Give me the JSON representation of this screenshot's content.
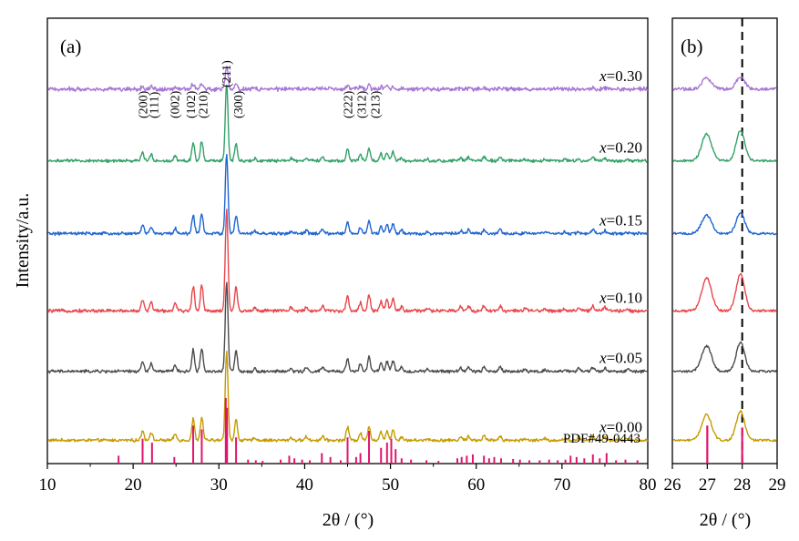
{
  "chart_data": [
    {
      "panel": "(a)",
      "type": "line",
      "xlabel": "2θ / (°)",
      "ylabel": "Intensity/a.u.",
      "xlim": [
        10,
        80
      ],
      "xticks": [
        "10",
        "20",
        "30",
        "40",
        "50",
        "60",
        "70",
        "80"
      ],
      "yaxis_ticks": "none",
      "series": [
        {
          "name": "x=0.00",
          "var": "x",
          "value": "=0.00",
          "color": "#c59b00",
          "baseline": 0.42,
          "scale": 1.0,
          "noise": 0.022
        },
        {
          "name": "x=0.05",
          "var": "x",
          "value": "=0.05",
          "color": "#4d4d4d",
          "baseline": 1.66,
          "scale": 1.0,
          "noise": 0.022
        },
        {
          "name": "x=0.10",
          "var": "x",
          "value": "=0.10",
          "color": "#e8474c",
          "baseline": 2.75,
          "scale": 1.13,
          "noise": 0.024
        },
        {
          "name": "x=0.15",
          "var": "x",
          "value": "=0.15",
          "color": "#1f66d1",
          "baseline": 4.14,
          "scale": 0.88,
          "noise": 0.022
        },
        {
          "name": "x=0.20",
          "var": "x",
          "value": "=0.20",
          "color": "#34a167",
          "baseline": 5.45,
          "scale": 0.87,
          "noise": 0.022
        },
        {
          "name": "x=0.30",
          "var": "x",
          "value": "=0.30",
          "color": "#a876d6",
          "baseline": 6.74,
          "scale": 0.26,
          "noise": 0.03
        }
      ],
      "peaks": [
        {
          "pos": 21.1,
          "h": 0.11
        },
        {
          "pos": 22.1,
          "h": 0.09
        },
        {
          "pos": 24.9,
          "h": 0.07
        },
        {
          "pos": 27.0,
          "h": 0.24
        },
        {
          "pos": 28.0,
          "h": 0.26
        },
        {
          "pos": 30.9,
          "h": 1.0
        },
        {
          "pos": 32.0,
          "h": 0.23
        },
        {
          "pos": 34.2,
          "h": 0.03
        },
        {
          "pos": 38.4,
          "h": 0.03
        },
        {
          "pos": 40.2,
          "h": 0.04
        },
        {
          "pos": 42.1,
          "h": 0.05
        },
        {
          "pos": 45.0,
          "h": 0.15
        },
        {
          "pos": 46.5,
          "h": 0.08
        },
        {
          "pos": 47.5,
          "h": 0.16
        },
        {
          "pos": 48.9,
          "h": 0.09
        },
        {
          "pos": 49.6,
          "h": 0.11
        },
        {
          "pos": 50.3,
          "h": 0.12
        },
        {
          "pos": 51.3,
          "h": 0.04
        },
        {
          "pos": 54.3,
          "h": 0.02
        },
        {
          "pos": 58.2,
          "h": 0.04
        },
        {
          "pos": 59.1,
          "h": 0.05
        },
        {
          "pos": 60.9,
          "h": 0.05
        },
        {
          "pos": 62.8,
          "h": 0.05
        },
        {
          "pos": 65.7,
          "h": 0.02
        },
        {
          "pos": 68.0,
          "h": 0.02
        },
        {
          "pos": 70.3,
          "h": 0.02
        },
        {
          "pos": 71.9,
          "h": 0.03
        },
        {
          "pos": 73.6,
          "h": 0.05
        },
        {
          "pos": 75.0,
          "h": 0.04
        },
        {
          "pos": 77.6,
          "h": 0.02
        }
      ],
      "hkl_labels": [
        {
          "text": "(200)",
          "pos": 21.1
        },
        {
          "text": "(111)",
          "pos": 22.4
        },
        {
          "text": "(002)",
          "pos": 24.8
        },
        {
          "text": "(102)",
          "pos": 26.7
        },
        {
          "text": "(210)",
          "pos": 28.1
        },
        {
          "text": "(211)",
          "pos": 30.8
        },
        {
          "text": "(300)",
          "pos": 32.2
        },
        {
          "text": "(222)",
          "pos": 45.0
        },
        {
          "text": "(312)",
          "pos": 46.6
        },
        {
          "text": "(213)",
          "pos": 48.2
        }
      ],
      "reference": {
        "label": "PDF#49-0443",
        "color": "#e0156e",
        "lines": [
          {
            "pos": 18.3,
            "h": 0.12
          },
          {
            "pos": 21.1,
            "h": 0.38
          },
          {
            "pos": 22.2,
            "h": 0.32
          },
          {
            "pos": 24.8,
            "h": 0.1
          },
          {
            "pos": 27.0,
            "h": 0.58
          },
          {
            "pos": 28.0,
            "h": 0.52
          },
          {
            "pos": 30.8,
            "h": 1.0
          },
          {
            "pos": 30.95,
            "h": 0.85
          },
          {
            "pos": 32.0,
            "h": 0.4
          },
          {
            "pos": 33.4,
            "h": 0.06
          },
          {
            "pos": 34.3,
            "h": 0.05
          },
          {
            "pos": 35.1,
            "h": 0.04
          },
          {
            "pos": 37.2,
            "h": 0.06
          },
          {
            "pos": 38.2,
            "h": 0.12
          },
          {
            "pos": 38.8,
            "h": 0.08
          },
          {
            "pos": 39.7,
            "h": 0.06
          },
          {
            "pos": 40.6,
            "h": 0.05
          },
          {
            "pos": 42.0,
            "h": 0.16
          },
          {
            "pos": 43.0,
            "h": 0.1
          },
          {
            "pos": 44.2,
            "h": 0.05
          },
          {
            "pos": 45.0,
            "h": 0.4
          },
          {
            "pos": 46.0,
            "h": 0.1
          },
          {
            "pos": 46.5,
            "h": 0.16
          },
          {
            "pos": 47.5,
            "h": 0.5
          },
          {
            "pos": 48.9,
            "h": 0.24
          },
          {
            "pos": 49.6,
            "h": 0.32
          },
          {
            "pos": 50.1,
            "h": 0.38
          },
          {
            "pos": 50.6,
            "h": 0.22
          },
          {
            "pos": 51.3,
            "h": 0.08
          },
          {
            "pos": 52.4,
            "h": 0.06
          },
          {
            "pos": 54.2,
            "h": 0.05
          },
          {
            "pos": 55.6,
            "h": 0.04
          },
          {
            "pos": 57.8,
            "h": 0.08
          },
          {
            "pos": 58.3,
            "h": 0.1
          },
          {
            "pos": 58.9,
            "h": 0.12
          },
          {
            "pos": 59.6,
            "h": 0.14
          },
          {
            "pos": 60.9,
            "h": 0.12
          },
          {
            "pos": 61.5,
            "h": 0.08
          },
          {
            "pos": 62.1,
            "h": 0.1
          },
          {
            "pos": 62.9,
            "h": 0.08
          },
          {
            "pos": 64.3,
            "h": 0.07
          },
          {
            "pos": 65.1,
            "h": 0.06
          },
          {
            "pos": 66.2,
            "h": 0.05
          },
          {
            "pos": 67.4,
            "h": 0.05
          },
          {
            "pos": 68.5,
            "h": 0.06
          },
          {
            "pos": 69.5,
            "h": 0.05
          },
          {
            "pos": 70.4,
            "h": 0.06
          },
          {
            "pos": 71.0,
            "h": 0.12
          },
          {
            "pos": 71.7,
            "h": 0.1
          },
          {
            "pos": 72.6,
            "h": 0.08
          },
          {
            "pos": 73.6,
            "h": 0.14
          },
          {
            "pos": 74.4,
            "h": 0.08
          },
          {
            "pos": 75.2,
            "h": 0.16
          },
          {
            "pos": 76.3,
            "h": 0.05
          },
          {
            "pos": 77.4,
            "h": 0.06
          },
          {
            "pos": 78.8,
            "h": 0.05
          }
        ]
      }
    },
    {
      "panel": "(b)",
      "type": "line",
      "xlabel": "2θ / (°)",
      "xlim": [
        26,
        29
      ],
      "xticks": [
        "26",
        "27",
        "28",
        "29"
      ],
      "dashed_reference_x": 28.0,
      "series": [
        {
          "name": "x=0.00",
          "color": "#c59b00",
          "baseline": 0.42,
          "scale": 1.0,
          "noise": 0.02
        },
        {
          "name": "x=0.05",
          "color": "#4d4d4d",
          "baseline": 1.66,
          "scale": 1.0,
          "noise": 0.02
        },
        {
          "name": "x=0.10",
          "color": "#e8474c",
          "baseline": 2.75,
          "scale": 1.28,
          "noise": 0.022
        },
        {
          "name": "x=0.15",
          "color": "#1f66d1",
          "baseline": 4.14,
          "scale": 0.72,
          "noise": 0.02
        },
        {
          "name": "x=0.20",
          "color": "#34a167",
          "baseline": 5.45,
          "scale": 1.05,
          "noise": 0.02
        },
        {
          "name": "x=0.30",
          "color": "#a876d6",
          "baseline": 6.74,
          "scale": 0.42,
          "noise": 0.028
        }
      ],
      "peaks": [
        {
          "pos": 26.98,
          "h": 0.46,
          "w": 0.14
        },
        {
          "pos": 27.95,
          "h": 0.52,
          "w": 0.12
        }
      ],
      "reference_lines": [
        {
          "pos": 27.0,
          "h": 0.58
        },
        {
          "pos": 28.0,
          "h": 0.55
        }
      ]
    }
  ]
}
